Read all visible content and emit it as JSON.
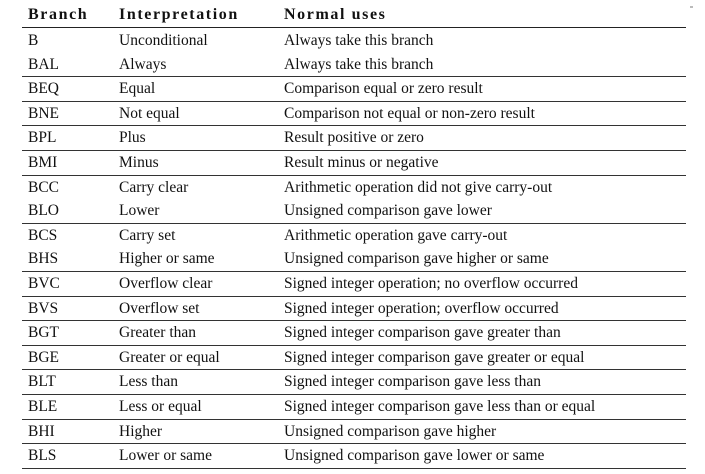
{
  "headers": {
    "branch": "Branch",
    "interpretation": "Interpretation",
    "uses": "Normal uses"
  },
  "groups": [
    [
      {
        "branch": "B",
        "interpretation": "Unconditional",
        "uses": "Always take this branch"
      },
      {
        "branch": "BAL",
        "interpretation": "Always",
        "uses": "Always take this branch"
      }
    ],
    [
      {
        "branch": "BEQ",
        "interpretation": "Equal",
        "uses": "Comparison equal or zero result"
      }
    ],
    [
      {
        "branch": "BNE",
        "interpretation": "Not equal",
        "uses": "Comparison not equal or non-zero result"
      }
    ],
    [
      {
        "branch": "BPL",
        "interpretation": "Plus",
        "uses": "Result positive or zero"
      }
    ],
    [
      {
        "branch": "BMI",
        "interpretation": "Minus",
        "uses": "Result minus or negative"
      }
    ],
    [
      {
        "branch": "BCC",
        "interpretation": "Carry clear",
        "uses": "Arithmetic operation did not give carry-out"
      },
      {
        "branch": "BLO",
        "interpretation": "Lower",
        "uses": "Unsigned comparison gave lower"
      }
    ],
    [
      {
        "branch": "BCS",
        "interpretation": "Carry set",
        "uses": "Arithmetic operation gave carry-out"
      },
      {
        "branch": "BHS",
        "interpretation": "Higher or same",
        "uses": "Unsigned comparison gave higher or same"
      }
    ],
    [
      {
        "branch": "BVC",
        "interpretation": "Overflow clear",
        "uses": "Signed integer operation; no overflow occurred"
      }
    ],
    [
      {
        "branch": "BVS",
        "interpretation": "Overflow set",
        "uses": "Signed integer operation; overflow occurred"
      }
    ],
    [
      {
        "branch": "BGT",
        "interpretation": "Greater than",
        "uses": "Signed integer comparison gave greater than"
      }
    ],
    [
      {
        "branch": "BGE",
        "interpretation": "Greater or equal",
        "uses": "Signed integer comparison gave greater or equal"
      }
    ],
    [
      {
        "branch": "BLT",
        "interpretation": "Less than",
        "uses": "Signed integer comparison gave less than"
      }
    ],
    [
      {
        "branch": "BLE",
        "interpretation": "Less or equal",
        "uses": "Signed integer comparison gave less than or equal"
      }
    ],
    [
      {
        "branch": "BHI",
        "interpretation": "Higher",
        "uses": "Unsigned comparison gave higher"
      }
    ],
    [
      {
        "branch": "BLS",
        "interpretation": "Lower or same",
        "uses": "Unsigned comparison gave lower or same"
      }
    ]
  ]
}
